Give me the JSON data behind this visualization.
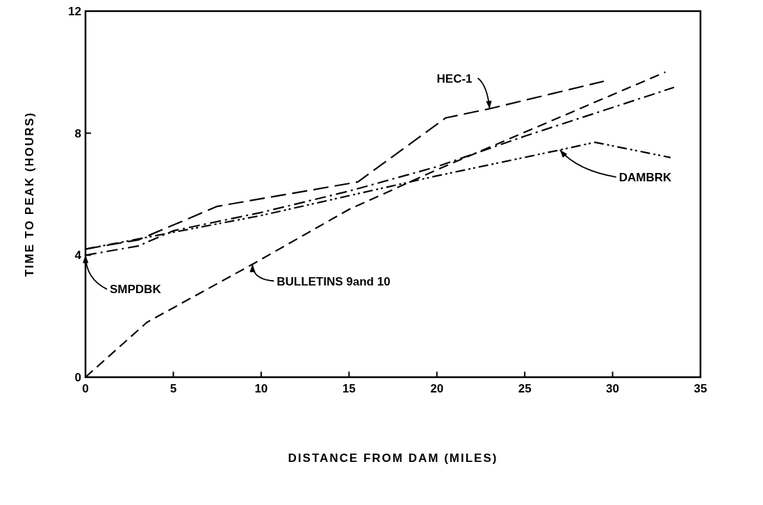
{
  "chart_data": {
    "type": "line",
    "xlabel": "DISTANCE FROM DAM (MILES)",
    "ylabel": "TIME TO PEAK (HOURS)",
    "xlim": [
      0,
      35
    ],
    "ylim": [
      0,
      12
    ],
    "xticks": [
      0,
      5,
      10,
      15,
      20,
      25,
      30,
      35
    ],
    "yticks": [
      0,
      4,
      8,
      12
    ],
    "grid": false,
    "marker": "none",
    "series": [
      {
        "name": "HEC-1",
        "color": "#000000",
        "line_style": "dashed",
        "x": [
          0,
          3,
          7.5,
          15.5,
          20.5,
          23,
          29.5
        ],
        "values": [
          4.2,
          4.5,
          5.6,
          6.4,
          8.5,
          8.8,
          9.7
        ]
      },
      {
        "name": "BULLETINS 9and 10",
        "color": "#000000",
        "line_style": "dashed",
        "x": [
          0,
          3.5,
          9.5,
          15,
          20,
          33
        ],
        "values": [
          0,
          1.8,
          3.7,
          5.5,
          6.8,
          10.0
        ]
      },
      {
        "name": "SMPDBK",
        "color": "#000000",
        "line_style": "dashed",
        "x": [
          0,
          3,
          5,
          10,
          15,
          20,
          25,
          33.5
        ],
        "values": [
          4.0,
          4.3,
          4.8,
          5.4,
          6.1,
          6.9,
          7.9,
          9.5
        ]
      },
      {
        "name": "DAMBRK",
        "color": "#000000",
        "line_style": "dashed",
        "x": [
          0,
          10,
          20,
          27,
          29,
          33.3
        ],
        "values": [
          4.2,
          5.3,
          6.6,
          7.45,
          7.7,
          7.2
        ]
      }
    ]
  }
}
